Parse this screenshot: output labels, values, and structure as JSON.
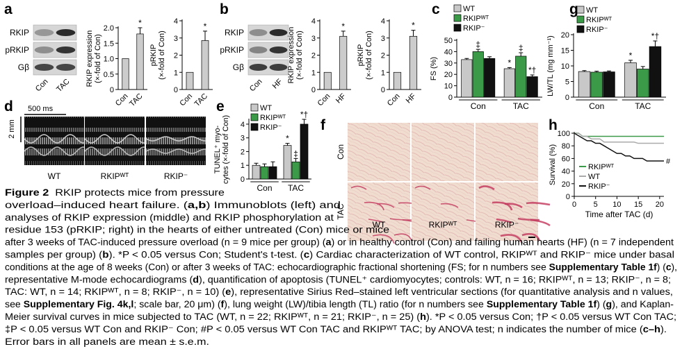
{
  "chart_data": [
    {
      "type": "bar",
      "ylabel": [
        "RKIP expression",
        "(×-fold of Con)"
      ],
      "categories": [
        "Con",
        "TAC"
      ],
      "values": [
        1.0,
        1.8
      ],
      "errors": [
        null,
        0.2
      ],
      "annotations": [
        null,
        "*"
      ],
      "color": "#cccccc",
      "ylim": [
        0,
        2
      ],
      "yticks": [
        0,
        0.5,
        {
          "value": 1,
          "label": "1.0"
        },
        1.5,
        {
          "value": 2,
          "label": "2.0"
        }
      ]
    },
    {
      "type": "bar",
      "ylabel": [
        "pRKIP",
        "(×-fold of Con)"
      ],
      "categories": [
        "Con",
        "TAC"
      ],
      "values": [
        1.0,
        2.85
      ],
      "errors": [
        null,
        0.55
      ],
      "annotations": [
        null,
        "*"
      ],
      "color": "#cccccc",
      "ylim": [
        0,
        4
      ],
      "yticks": [
        0,
        1,
        2,
        3,
        4
      ]
    },
    {
      "type": "bar",
      "ylabel": [
        "RKIP expression",
        "(×-fold of Con)"
      ],
      "categories": [
        "Con",
        "HF"
      ],
      "values": [
        1.0,
        3.1
      ],
      "errors": [
        null,
        0.3
      ],
      "annotations": [
        null,
        "*"
      ],
      "color": "#cccccc",
      "ylim": [
        0,
        4
      ],
      "yticks": [
        0,
        1,
        2,
        3,
        4
      ]
    },
    {
      "type": "bar",
      "ylabel": [
        "pRKIP",
        "(×-fold of Con)"
      ],
      "categories": [
        "Con",
        "HF"
      ],
      "values": [
        1.0,
        3.1
      ],
      "errors": [
        null,
        0.35
      ],
      "annotations": [
        null,
        "*"
      ],
      "color": "#cccccc",
      "ylim": [
        0,
        4
      ],
      "yticks": [
        0,
        1,
        2,
        3,
        4
      ]
    },
    {
      "type": "bar",
      "ylabel": [
        "FS (%)"
      ],
      "categories": [
        "Con",
        "TAC"
      ],
      "ylim": [
        0,
        50
      ],
      "yticks": [
        0,
        10,
        20,
        30,
        40,
        50
      ],
      "series": [
        {
          "name": "WT",
          "color": "#c8c8c8",
          "values": [
            33,
            25
          ],
          "errors": [
            1,
            1
          ],
          "annotations": [
            null,
            "*"
          ]
        },
        {
          "name": "RKIPᵂᵀ",
          "color": "#3a9a48",
          "values": [
            40,
            36
          ],
          "errors": [
            2,
            3
          ],
          "annotations": [
            "‡",
            "‡"
          ]
        },
        {
          "name": "RKIP⁻",
          "color": "#111111",
          "values": [
            34,
            18
          ],
          "errors": [
            1.5,
            1.5
          ],
          "annotations": [
            null,
            "*†"
          ]
        }
      ]
    },
    {
      "type": "bar",
      "ylabel": [
        "LW/TL (mg mm⁻¹)"
      ],
      "categories": [
        "Con",
        "TAC"
      ],
      "ylim": [
        0,
        20
      ],
      "yticks": [
        0,
        5,
        10,
        15,
        20
      ],
      "series": [
        {
          "name": "WT",
          "color": "#c8c8c8",
          "values": [
            8.2,
            11
          ],
          "errors": [
            0.3,
            0.8
          ],
          "annotations": [
            null,
            "*"
          ]
        },
        {
          "name": "RKIPᵂᵀ",
          "color": "#3a9a48",
          "values": [
            8,
            9
          ],
          "errors": [
            0.3,
            0.8
          ],
          "annotations": [
            null,
            null
          ]
        },
        {
          "name": "RKIP⁻",
          "color": "#111111",
          "values": [
            8.1,
            16.2
          ],
          "errors": [
            0.3,
            1.8
          ],
          "annotations": [
            null,
            "*†"
          ]
        }
      ]
    },
    {
      "type": "bar",
      "ylabel": [
        "TUNEL⁺ myo-",
        "cytes (×-fold of Con)"
      ],
      "categories": [
        "Con",
        "TAC"
      ],
      "ylim": [
        0,
        4.3
      ],
      "yticks": [
        0,
        1,
        2,
        3,
        4
      ],
      "series": [
        {
          "name": "WT",
          "color": "#c8c8c8",
          "values": [
            1.0,
            2.45
          ],
          "errors": [
            0.15,
            0.15
          ],
          "annotations": [
            null,
            "*"
          ]
        },
        {
          "name": "RKIPᵂᵀ",
          "color": "#3a9a48",
          "values": [
            0.9,
            1.25
          ],
          "errors": [
            0.2,
            0.25
          ],
          "annotations": [
            null,
            "‡"
          ]
        },
        {
          "name": "RKIP⁻",
          "color": "#111111",
          "values": [
            0.9,
            4.0
          ],
          "errors": [
            0.35,
            0.35
          ],
          "annotations": [
            null,
            "*†"
          ]
        }
      ]
    },
    {
      "type": "line",
      "ylabel": "Survival (%)",
      "xlabel": "Time after TAC (d)",
      "x": [
        0,
        1,
        2,
        3,
        4,
        5,
        6,
        7,
        8,
        9,
        10,
        11,
        12,
        13,
        14,
        15,
        16,
        17,
        18,
        19,
        20,
        21
      ],
      "xlim": [
        0,
        21
      ],
      "xticks": [
        0,
        5,
        10,
        15,
        20
      ],
      "ylim": [
        0,
        100
      ],
      "yticks": [
        0,
        20,
        40,
        60,
        80,
        100
      ],
      "series": [
        {
          "name": "RKIPᵂᵀ",
          "color": "#3a9a48",
          "values": [
            100,
            100,
            95,
            95,
            95,
            95,
            95,
            95,
            95,
            95,
            95,
            95,
            95,
            95,
            95,
            95,
            95,
            95,
            95,
            95,
            95,
            95
          ]
        },
        {
          "name": "WT",
          "color": "#aaaaaa",
          "values": [
            100,
            100,
            95,
            95,
            91,
            91,
            91,
            86,
            86,
            86,
            86,
            86,
            86,
            86,
            86,
            84,
            84,
            84,
            84,
            84,
            84,
            84
          ]
        },
        {
          "name": "RKIP⁻",
          "color": "#111111",
          "values": [
            100,
            96,
            92,
            88,
            88,
            84,
            84,
            80,
            76,
            72,
            68,
            68,
            64,
            64,
            60,
            60,
            60,
            56,
            56,
            56,
            56,
            56
          ],
          "annotation": "#"
        }
      ]
    }
  ],
  "panel_labels": [
    "a",
    "b",
    "c",
    "d",
    "e",
    "f",
    "g",
    "h"
  ],
  "blots": [
    {
      "rows": [
        "RKIP",
        "pRKIP",
        "Gβ"
      ],
      "lanes": [
        "Con",
        "TAC"
      ]
    },
    {
      "rows": [
        "RKIP",
        "pRKIP",
        "Gβ"
      ],
      "lanes": [
        "Con",
        "HF"
      ]
    }
  ],
  "echo": {
    "scale": "500 ms",
    "depth": "2 mm",
    "labels": [
      "WT",
      "RKIPᵂᵀ",
      "RKIP⁻"
    ]
  },
  "histology": {
    "rows": [
      "Con",
      "TAC"
    ],
    "columns": [
      "WT",
      "RKIPᵂᵀ",
      "RKIP⁻"
    ]
  },
  "caption": {
    "lines": [
      [
        {
          "b": "Figure 2"
        },
        "  RKIP protects mice from pressure"
      ],
      [
        "overload–induced heart failure. (",
        {
          "b": "a,b"
        },
        ") Immunoblots (left) and"
      ],
      [
        "analyses of RKIP expression (middle) and RKIP phosphorylation at"
      ],
      [
        "residue 153 (pRKIP; right) in the hearts of either untreated (Con) mice or mice"
      ],
      [
        "after 3 weeks of TAC-induced pressure overload (n = 9 mice per group) (",
        {
          "b": "a"
        },
        ") or in healthy control (Con) and failing human hearts (HF) (n = 7 independent"
      ],
      [
        "samples per group) (",
        {
          "b": "b"
        },
        "). *P < 0.05 versus Con; Student's t-test. (",
        {
          "b": "c"
        },
        ") Cardiac characterization of WT control, RKIPᵂᵀ and RKIP⁻ mice under basal"
      ],
      [
        "conditions at the age of 8 weeks (Con) or after 3 weeks of TAC: echocardiographic fractional shortening (FS; for n numbers see ",
        {
          "b": "Supplementary Table 1f"
        },
        ") (",
        {
          "b": "c"
        },
        "),"
      ],
      [
        "representative M-mode echocardiograms (",
        {
          "b": "d"
        },
        "), quantification of apoptosis (TUNEL⁺ cardiomyocytes; controls: WT, n = 16; RKIPᵂᵀ, n = 13; RKIP⁻, n = 8;"
      ],
      [
        "TAC: WT, n = 14; RKIPᵂᵀ, n = 8; RKIP⁻, n = 10) (",
        {
          "b": "e"
        },
        "), representative Sirius Red–stained left ventricular sections (for quantitative analysis and n values,"
      ],
      [
        "see ",
        {
          "b": "Supplementary Fig. 4k,l"
        },
        "; scale bar, 20 μm) (",
        {
          "b": "f"
        },
        "), lung weight (LW)/tibia length (TL) ratio (for n numbers see ",
        {
          "b": "Supplementary Table 1f"
        },
        ") (",
        {
          "b": "g"
        },
        "), and Kaplan-"
      ],
      [
        "Meier survival curves in mice subjected to TAC (WT, n = 22; RKIPᵂᵀ, n = 21; RKIP⁻, n = 25) (",
        {
          "b": "h"
        },
        "). *P < 0.05 versus Con; †P < 0.05 versus WT Con TAC;"
      ],
      [
        "‡P < 0.05 versus WT Con and RKIP⁻ Con; #P < 0.05 versus WT Con TAC and RKIPᵂᵀ TAC; by ANOVA test; n indicates the number of mice (",
        {
          "b": "c–h"
        },
        ")."
      ],
      [
        "Error bars in all panels are mean ± s.e.m."
      ]
    ]
  }
}
